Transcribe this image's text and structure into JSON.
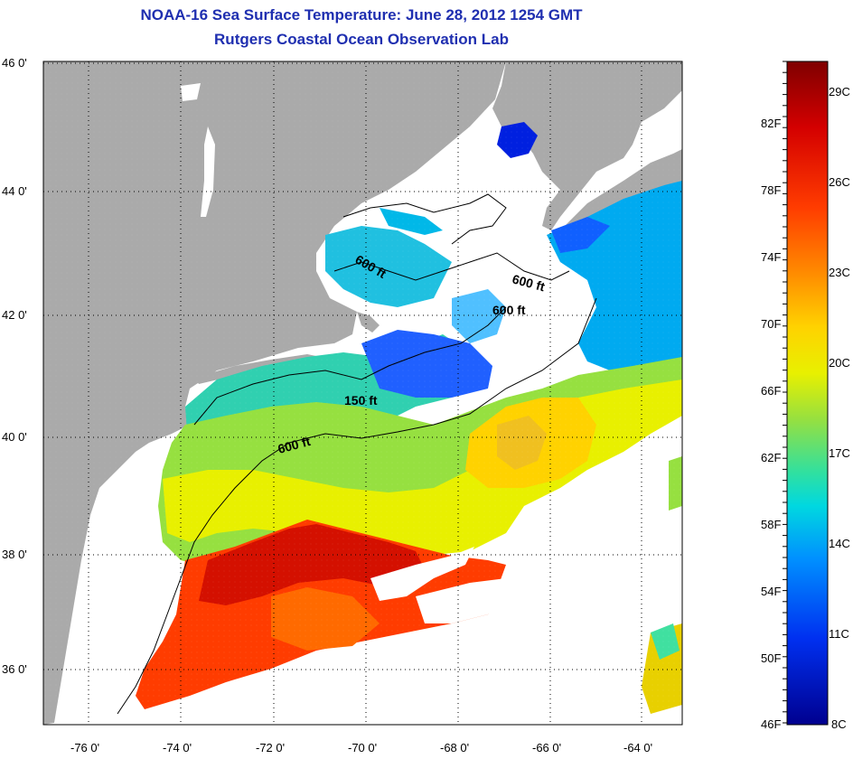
{
  "title": "NOAA-16 Sea Surface Temperature:  June 28, 2012 1254 GMT",
  "subtitle": "Rutgers Coastal Ocean Observation Lab",
  "lat_labels": [
    "46 0'",
    "44 0'",
    "42 0'",
    "40 0'",
    "38 0'",
    "36 0'"
  ],
  "lon_labels": [
    "-76 0'",
    "-74 0'",
    "-72 0'",
    "-70 0'",
    "-68 0'",
    "-66 0'",
    "-64 0'"
  ],
  "contour_labels": [
    "600 ft",
    "600 ft",
    "600 ft",
    "150 ft",
    "600 ft"
  ],
  "colorbar": {
    "fahrenheit": [
      "82F",
      "78F",
      "74F",
      "70F",
      "66F",
      "62F",
      "58F",
      "54F",
      "50F",
      "46F"
    ],
    "celsius": [
      "29C",
      "26C",
      "23C",
      "20C",
      "17C",
      "14C",
      "11C",
      "8C"
    ],
    "colors": [
      "#7f0000",
      "#d40000",
      "#ff3c00",
      "#ff8c00",
      "#ffd200",
      "#e8f000",
      "#96e040",
      "#30e0a0",
      "#00d8e0",
      "#0090ff",
      "#0030f0",
      "#00008f"
    ]
  },
  "colors": {
    "land": "#aaaaaa",
    "title": "#1f2fb0"
  }
}
